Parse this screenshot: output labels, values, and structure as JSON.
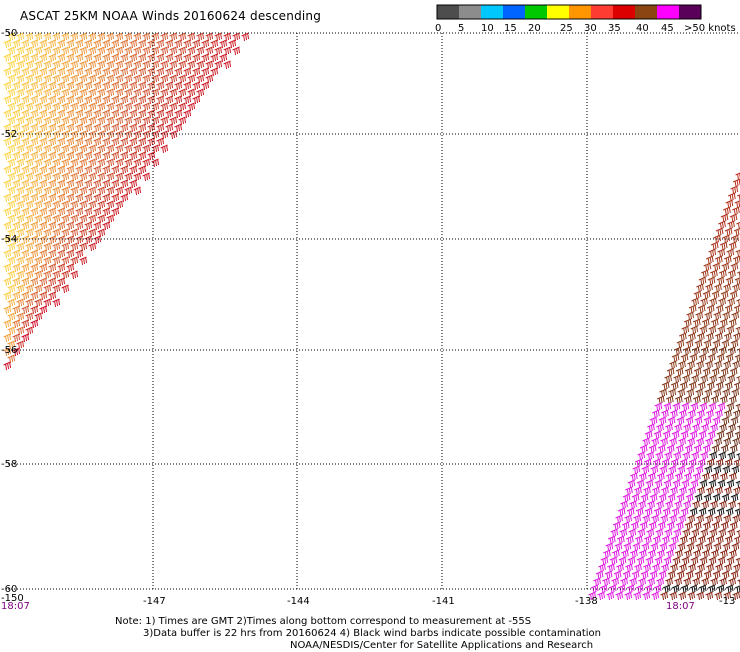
{
  "title": "ASCAT 25KM NOAA Winds 20160624 descending",
  "legend": {
    "labels": [
      "0",
      "5",
      "10",
      "15",
      "20",
      "25",
      "30",
      "35",
      "40",
      "45",
      ">50 knots"
    ],
    "colors": [
      "#4d4d4d",
      "#8c8c8c",
      "#00c8ff",
      "#0064ff",
      "#00c800",
      "#ffff00",
      "#ff9600",
      "#ff3c32",
      "#dc0000",
      "#8b4513",
      "#ff00ff",
      "#5a005a"
    ]
  },
  "map": {
    "lat_labels": [
      "-50",
      "-52",
      "-54",
      "-56",
      "-58",
      "-60"
    ],
    "lon_labels": [
      "-150",
      "-147",
      "-144",
      "-141",
      "-138",
      "-13"
    ],
    "time_labels": [
      "18:07",
      "18:07"
    ]
  },
  "notes": {
    "line1": "Note: 1) Times are GMT 2)Times along bottom correspond to measurement at -55S",
    "line2": "3)Data buffer is 22 hrs from 20160624 4) Black wind barbs indicate possible contamination",
    "line3": "NOAA/NESDIS/Center for Satellite Applications and Research"
  }
}
